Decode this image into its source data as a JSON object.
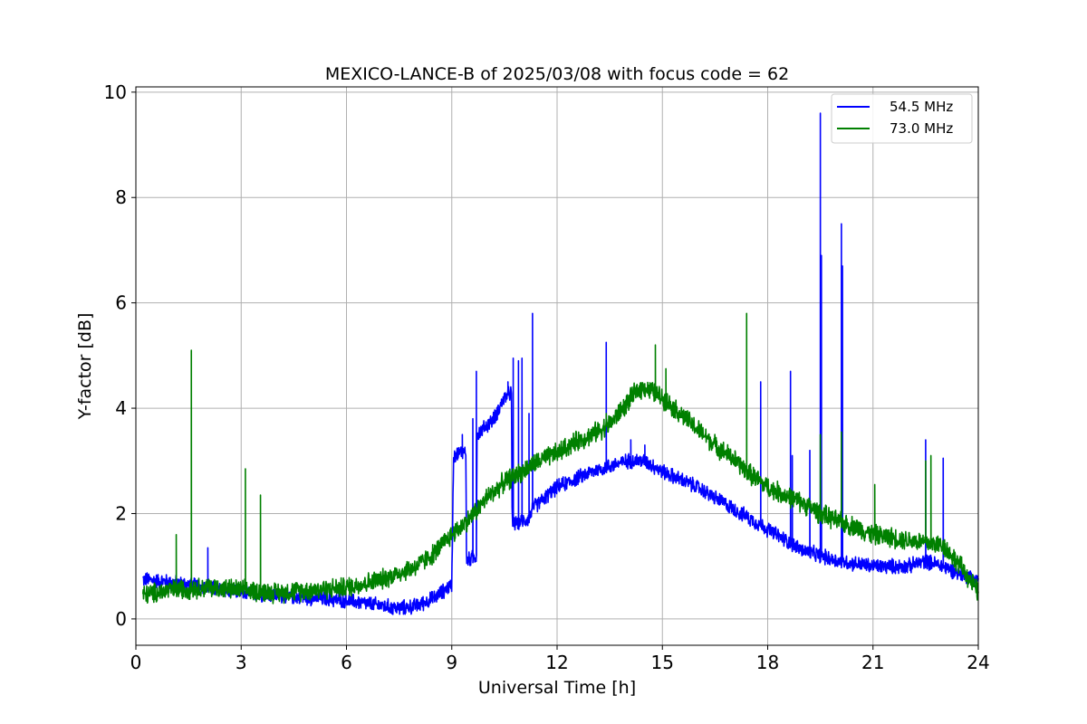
{
  "chart_data": {
    "type": "line",
    "title": "MEXICO-LANCE-B of 2025/03/08 with focus code = 62",
    "xlabel": "Universal Time [h]",
    "ylabel": "Y-factor [dB]",
    "xlim": [
      0,
      24
    ],
    "ylim": [
      -0.5,
      10.1
    ],
    "xticks": [
      0,
      3,
      6,
      9,
      12,
      15,
      18,
      21,
      24
    ],
    "xtick_labels": [
      "0",
      "3",
      "6",
      "9",
      "12",
      "15",
      "18",
      "21",
      "24"
    ],
    "yticks": [
      0,
      2,
      4,
      6,
      8,
      10
    ],
    "ytick_labels": [
      "0",
      "2",
      "4",
      "6",
      "8",
      "10"
    ],
    "grid": true,
    "legend_position": "top-right",
    "series": [
      {
        "name": "54.5 MHz",
        "color": "#0000ff",
        "baseline": [
          [
            0.2,
            0.75
          ],
          [
            1,
            0.7
          ],
          [
            2,
            0.6
          ],
          [
            3,
            0.5
          ],
          [
            4,
            0.45
          ],
          [
            5,
            0.4
          ],
          [
            6,
            0.35
          ],
          [
            6.5,
            0.3
          ],
          [
            7,
            0.25
          ],
          [
            7.5,
            0.2
          ],
          [
            8,
            0.25
          ],
          [
            8.5,
            0.4
          ],
          [
            9,
            0.65
          ],
          [
            9.05,
            3.1
          ],
          [
            9.4,
            3.2
          ],
          [
            9.42,
            1.1
          ],
          [
            9.7,
            1.2
          ],
          [
            9.72,
            3.5
          ],
          [
            10.2,
            3.8
          ],
          [
            10.5,
            4.2
          ],
          [
            10.7,
            4.3
          ],
          [
            10.72,
            1.8
          ],
          [
            11.2,
            1.9
          ],
          [
            11.3,
            2.1
          ],
          [
            12,
            2.5
          ],
          [
            13,
            2.8
          ],
          [
            14,
            3.0
          ],
          [
            14.5,
            3.0
          ],
          [
            15,
            2.8
          ],
          [
            16,
            2.5
          ],
          [
            17,
            2.1
          ],
          [
            18,
            1.7
          ],
          [
            18.5,
            1.5
          ],
          [
            19,
            1.3
          ],
          [
            19.5,
            1.2
          ],
          [
            20,
            1.1
          ],
          [
            21,
            1.0
          ],
          [
            22,
            1.0
          ],
          [
            22.5,
            1.1
          ],
          [
            23,
            1.0
          ],
          [
            23.5,
            0.85
          ],
          [
            24,
            0.75
          ]
        ],
        "noise": 0.12,
        "spikes": [
          [
            2.05,
            1.35
          ],
          [
            9.3,
            3.5
          ],
          [
            9.6,
            3.8
          ],
          [
            9.7,
            4.7
          ],
          [
            10.6,
            4.5
          ],
          [
            10.75,
            4.95
          ],
          [
            10.9,
            4.9
          ],
          [
            11.0,
            4.95
          ],
          [
            11.2,
            3.9
          ],
          [
            11.3,
            5.8
          ],
          [
            13.4,
            5.25
          ],
          [
            14.1,
            3.4
          ],
          [
            14.5,
            3.3
          ],
          [
            17.8,
            4.5
          ],
          [
            18.65,
            4.7
          ],
          [
            18.7,
            3.1
          ],
          [
            19.2,
            3.2
          ],
          [
            19.5,
            9.6
          ],
          [
            19.53,
            6.9
          ],
          [
            20.1,
            7.5
          ],
          [
            20.13,
            6.7
          ],
          [
            22.5,
            3.4
          ],
          [
            23.0,
            3.05
          ]
        ]
      },
      {
        "name": "73.0 MHz",
        "color": "#008000",
        "baseline": [
          [
            0.2,
            0.45
          ],
          [
            1,
            0.55
          ],
          [
            2,
            0.6
          ],
          [
            3,
            0.55
          ],
          [
            4,
            0.5
          ],
          [
            5,
            0.55
          ],
          [
            6,
            0.6
          ],
          [
            7,
            0.75
          ],
          [
            8,
            1.0
          ],
          [
            8.5,
            1.25
          ],
          [
            9,
            1.6
          ],
          [
            9.5,
            1.9
          ],
          [
            10,
            2.3
          ],
          [
            10.5,
            2.6
          ],
          [
            11,
            2.8
          ],
          [
            11.5,
            3.0
          ],
          [
            12,
            3.15
          ],
          [
            12.5,
            3.35
          ],
          [
            13,
            3.5
          ],
          [
            13.5,
            3.7
          ],
          [
            14,
            4.1
          ],
          [
            14.3,
            4.35
          ],
          [
            14.5,
            4.4
          ],
          [
            15,
            4.2
          ],
          [
            15.5,
            3.9
          ],
          [
            16,
            3.6
          ],
          [
            16.5,
            3.3
          ],
          [
            17,
            3.05
          ],
          [
            17.5,
            2.75
          ],
          [
            18,
            2.5
          ],
          [
            18.5,
            2.35
          ],
          [
            19,
            2.2
          ],
          [
            19.5,
            2.0
          ],
          [
            20,
            1.85
          ],
          [
            20.5,
            1.75
          ],
          [
            21,
            1.6
          ],
          [
            21.5,
            1.55
          ],
          [
            22,
            1.5
          ],
          [
            22.5,
            1.45
          ],
          [
            23,
            1.4
          ],
          [
            23.5,
            1.0
          ],
          [
            24,
            0.5
          ]
        ],
        "noise": 0.16,
        "spikes": [
          [
            1.15,
            1.6
          ],
          [
            1.58,
            5.1
          ],
          [
            3.12,
            2.85
          ],
          [
            3.55,
            2.35
          ],
          [
            13.4,
            3.9
          ],
          [
            14.8,
            5.2
          ],
          [
            15.1,
            4.75
          ],
          [
            17.4,
            5.8
          ],
          [
            19.5,
            3.5
          ],
          [
            20.1,
            3.55
          ],
          [
            21.05,
            2.55
          ],
          [
            22.5,
            3.0
          ],
          [
            22.65,
            3.1
          ]
        ]
      }
    ]
  }
}
